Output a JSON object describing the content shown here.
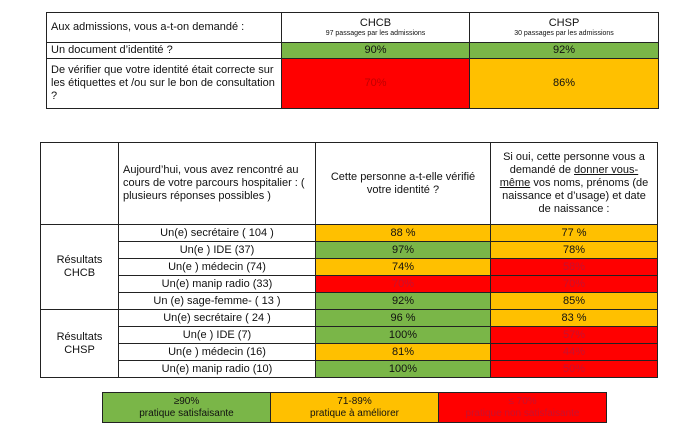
{
  "table1": {
    "question": "Aux admissions, vous a-t-on demandé :",
    "col1": {
      "title": "CHCB",
      "sub": "97 passages par les admissions"
    },
    "col2": {
      "title": "CHSP",
      "sub": "30 passages par les admissions"
    },
    "rows": [
      {
        "label": "Un document d’identité ?",
        "v1": "90%",
        "v2": "92%"
      },
      {
        "label": "De vérifier que votre identité était correcte sur les étiquettes et /ou sur le bon de consultation ?",
        "v1": "70%",
        "v2": "86%"
      }
    ]
  },
  "table2": {
    "header_roles": "Aujourd’hui, vous avez rencontré au cours de votre parcours hospitalier : ( plusieurs réponses possibles )",
    "header_col1": "Cette personne a-t-elle vérifié votre identité ?",
    "header_col2_pre": "Si oui, cette personne vous a demandé de ",
    "header_col2_u": "donner vous-même",
    "header_col2_post": " vos noms,  prénoms (de naissance et d’usage) et date de naissance :",
    "groups": [
      {
        "label": "Résultats CHCB",
        "rows": [
          {
            "role": "Un(e) secrétaire ( 104 )",
            "v1": "88 %",
            "v2": "77 %"
          },
          {
            "role": "Un(e ) IDE (37)",
            "v1": "97%",
            "v2": "78%"
          },
          {
            "role": "Un(e )  médecin (74)",
            "v1": "74%",
            "v2": "58%"
          },
          {
            "role": "Un(e)  manip radio (33)",
            "v1": "70%",
            "v2": "70%"
          },
          {
            "role": "Un (e) sage-femme- ( 13 )",
            "v1": "92%",
            "v2": "85%"
          }
        ]
      },
      {
        "label": "Résultats CHSP",
        "rows": [
          {
            "role": "Un(e) secrétaire ( 24 )",
            "v1": "96 %",
            "v2": "83 %"
          },
          {
            "role": "Un(e ) IDE (7)",
            "v1": "100%",
            "v2": "57%"
          },
          {
            "role": "Un(e )  médecin (16)",
            "v1": "81%",
            "v2": "44%"
          },
          {
            "role": "Un(e)  manip radio (10)",
            "v1": "100%",
            "v2": "50%"
          }
        ]
      }
    ]
  },
  "legend": [
    {
      "range": "≥90%",
      "label": "pratique satisfaisante",
      "color": "#7ab648"
    },
    {
      "range": "71-89%",
      "label": "pratique à améliorer",
      "color": "#ffc000"
    },
    {
      "range": "≤ 70%",
      "label": "pratique non satisfaisante",
      "color": "#ff0000"
    }
  ]
}
